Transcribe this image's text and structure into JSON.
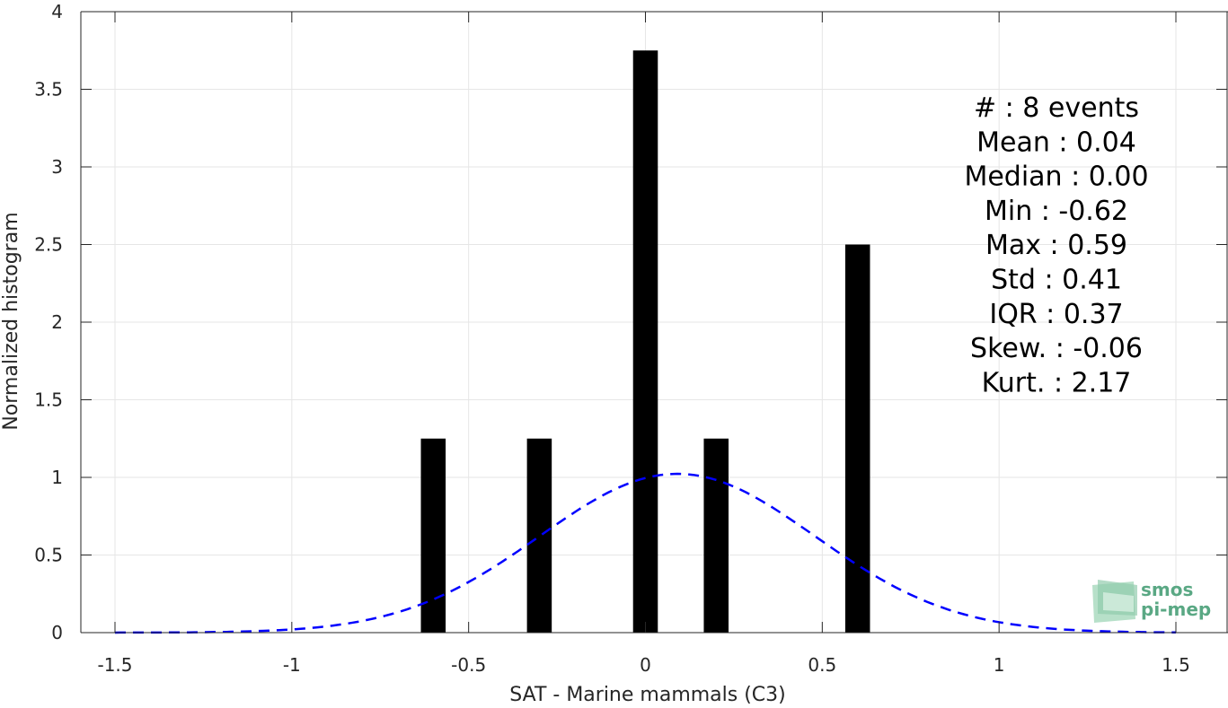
{
  "chart_data": {
    "type": "bar",
    "xlabel": "SAT - Marine mammals (C3)",
    "ylabel": "Normalized histogram",
    "xlim": [
      -1.5,
      1.5
    ],
    "ylim": [
      0,
      4
    ],
    "xticks": [
      "-1.5",
      "-1",
      "-0.5",
      "0",
      "0.5",
      "1",
      "1.5"
    ],
    "yticks": [
      "0",
      "0.5",
      "1",
      "1.5",
      "2",
      "2.5",
      "3",
      "3.5",
      "4"
    ],
    "grid": true,
    "bars": {
      "color": "#000000",
      "x": [
        -0.6,
        -0.3,
        0.0,
        0.2,
        0.6
      ],
      "values": [
        1.25,
        1.25,
        3.75,
        1.25,
        2.5
      ],
      "width": 0.07
    },
    "fit_curve": {
      "style": "dashed",
      "color": "#0000ff",
      "distribution": "normal",
      "mean": 0.09,
      "sd": 0.39,
      "x_range": [
        -1.5,
        1.5
      ]
    },
    "stats": [
      "#  : 8 events",
      "Mean : 0.04",
      "Median : 0.00",
      "Min : -0.62",
      "Max : 0.59",
      "Std : 0.41",
      "IQR : 0.37",
      "Skew. : -0.06",
      "Kurt. : 2.17"
    ]
  },
  "logo": {
    "line1": "smos",
    "line2": "pi-mep",
    "color": "#5aa884"
  }
}
